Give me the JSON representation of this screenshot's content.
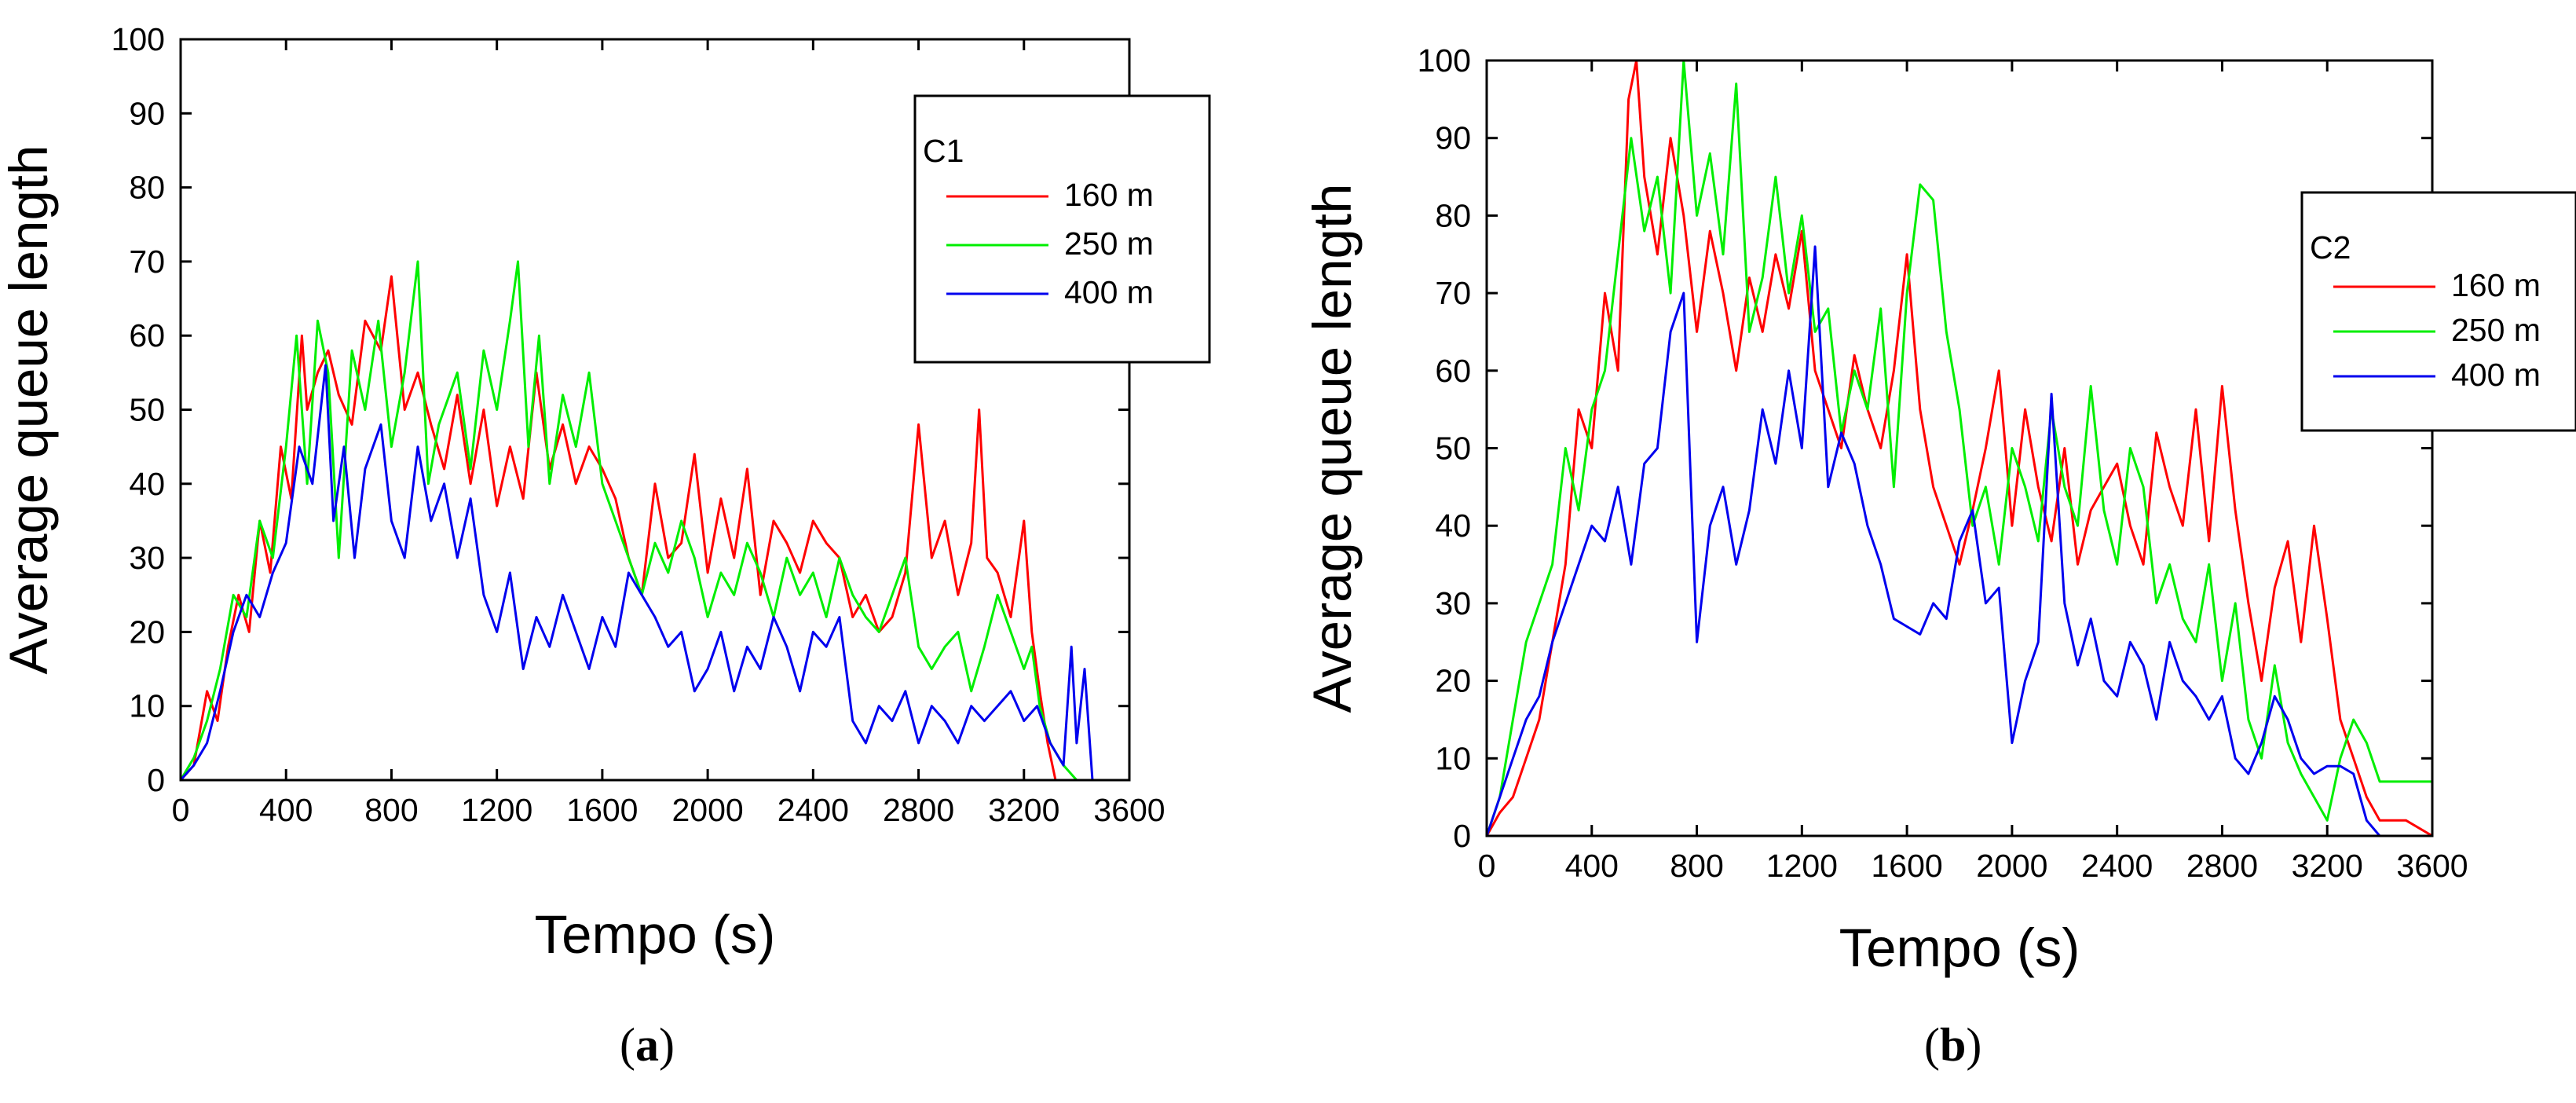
{
  "chart_data": [
    {
      "type": "line",
      "panel_label": "a",
      "xlabel": "Tempo (s)",
      "ylabel": "Average queue length",
      "xlim": [
        0,
        3600
      ],
      "ylim": [
        0,
        100
      ],
      "xticks": [
        0,
        400,
        800,
        1200,
        1600,
        2000,
        2400,
        2800,
        3200,
        3600
      ],
      "yticks": [
        0,
        10,
        20,
        30,
        40,
        50,
        60,
        70,
        80,
        90,
        100
      ],
      "legend_title": "C1",
      "legend_position": "top-right",
      "series": [
        {
          "name": "160 m",
          "color": "#ff0000",
          "x": [
            0,
            50,
            100,
            140,
            180,
            220,
            260,
            300,
            340,
            380,
            420,
            460,
            480,
            520,
            560,
            600,
            650,
            700,
            760,
            800,
            850,
            900,
            950,
            1000,
            1050,
            1100,
            1150,
            1200,
            1250,
            1300,
            1350,
            1400,
            1450,
            1500,
            1550,
            1600,
            1650,
            1700,
            1750,
            1800,
            1850,
            1900,
            1950,
            2000,
            2050,
            2100,
            2150,
            2200,
            2250,
            2300,
            2350,
            2400,
            2450,
            2500,
            2550,
            2600,
            2650,
            2700,
            2750,
            2800,
            2850,
            2900,
            2950,
            3000,
            3030,
            3060,
            3100,
            3150,
            3200,
            3230,
            3260,
            3290,
            3320
          ],
          "y": [
            0,
            2,
            12,
            8,
            18,
            25,
            20,
            35,
            28,
            45,
            38,
            60,
            50,
            55,
            58,
            52,
            48,
            62,
            58,
            68,
            50,
            55,
            48,
            42,
            52,
            40,
            50,
            37,
            45,
            38,
            55,
            42,
            48,
            40,
            45,
            42,
            38,
            30,
            25,
            40,
            30,
            32,
            44,
            28,
            38,
            30,
            42,
            25,
            35,
            32,
            28,
            35,
            32,
            30,
            22,
            25,
            20,
            22,
            28,
            48,
            30,
            35,
            25,
            32,
            50,
            30,
            28,
            22,
            35,
            20,
            12,
            5,
            0
          ]
        },
        {
          "name": "250 m",
          "color": "#00ee00",
          "x": [
            0,
            50,
            100,
            150,
            200,
            250,
            300,
            350,
            400,
            440,
            480,
            520,
            560,
            600,
            650,
            700,
            750,
            800,
            850,
            900,
            940,
            980,
            1050,
            1100,
            1150,
            1200,
            1250,
            1280,
            1320,
            1360,
            1400,
            1450,
            1500,
            1550,
            1600,
            1650,
            1700,
            1750,
            1800,
            1850,
            1900,
            1950,
            2000,
            2050,
            2100,
            2150,
            2200,
            2250,
            2300,
            2350,
            2400,
            2450,
            2500,
            2550,
            2600,
            2650,
            2700,
            2750,
            2800,
            2850,
            2900,
            2950,
            3000,
            3050,
            3100,
            3150,
            3200,
            3230,
            3260,
            3300,
            3350,
            3400
          ],
          "y": [
            0,
            3,
            8,
            15,
            25,
            22,
            35,
            30,
            45,
            60,
            40,
            62,
            55,
            30,
            58,
            50,
            62,
            45,
            55,
            70,
            40,
            48,
            55,
            42,
            58,
            50,
            62,
            70,
            45,
            60,
            40,
            52,
            45,
            55,
            40,
            35,
            30,
            25,
            32,
            28,
            35,
            30,
            22,
            28,
            25,
            32,
            28,
            22,
            30,
            25,
            28,
            22,
            30,
            25,
            22,
            20,
            25,
            30,
            18,
            15,
            18,
            20,
            12,
            18,
            25,
            20,
            15,
            18,
            10,
            5,
            2,
            0
          ]
        },
        {
          "name": "400 m",
          "color": "#0000ee",
          "x": [
            0,
            50,
            100,
            150,
            200,
            250,
            300,
            350,
            400,
            450,
            500,
            550,
            580,
            620,
            660,
            700,
            760,
            800,
            850,
            900,
            950,
            1000,
            1050,
            1100,
            1150,
            1200,
            1250,
            1300,
            1350,
            1400,
            1450,
            1500,
            1550,
            1600,
            1650,
            1700,
            1750,
            1800,
            1850,
            1900,
            1950,
            2000,
            2050,
            2100,
            2150,
            2200,
            2250,
            2300,
            2350,
            2400,
            2450,
            2500,
            2550,
            2600,
            2650,
            2700,
            2750,
            2800,
            2850,
            2900,
            2950,
            3000,
            3050,
            3100,
            3150,
            3200,
            3250,
            3300,
            3350,
            3380,
            3400,
            3430,
            3460,
            3600
          ],
          "y": [
            0,
            2,
            5,
            12,
            20,
            25,
            22,
            28,
            32,
            45,
            40,
            56,
            35,
            45,
            30,
            42,
            48,
            35,
            30,
            45,
            35,
            40,
            30,
            38,
            25,
            20,
            28,
            15,
            22,
            18,
            25,
            20,
            15,
            22,
            18,
            28,
            25,
            22,
            18,
            20,
            12,
            15,
            20,
            12,
            18,
            15,
            22,
            18,
            12,
            20,
            18,
            22,
            8,
            5,
            10,
            8,
            12,
            5,
            10,
            8,
            5,
            10,
            8,
            10,
            12,
            8,
            10,
            5,
            2,
            18,
            5,
            15,
            0,
            0
          ]
        }
      ]
    },
    {
      "type": "line",
      "panel_label": "b",
      "xlabel": "Tempo (s)",
      "ylabel": "Average queue length",
      "xlim": [
        0,
        3600
      ],
      "ylim": [
        0,
        100
      ],
      "xticks": [
        0,
        400,
        800,
        1200,
        1600,
        2000,
        2400,
        2800,
        3200,
        3600
      ],
      "yticks": [
        0,
        10,
        20,
        30,
        40,
        50,
        60,
        70,
        80,
        90,
        100
      ],
      "legend_title": "C2",
      "legend_position": "top-right",
      "series": [
        {
          "name": "160 m",
          "color": "#ff0000",
          "x": [
            0,
            50,
            100,
            150,
            200,
            250,
            300,
            350,
            400,
            450,
            500,
            540,
            570,
            600,
            650,
            700,
            750,
            800,
            850,
            900,
            950,
            1000,
            1050,
            1100,
            1150,
            1200,
            1250,
            1300,
            1350,
            1400,
            1450,
            1500,
            1550,
            1600,
            1650,
            1700,
            1750,
            1800,
            1850,
            1900,
            1950,
            2000,
            2050,
            2100,
            2150,
            2200,
            2250,
            2300,
            2350,
            2400,
            2450,
            2500,
            2550,
            2600,
            2650,
            2700,
            2750,
            2800,
            2850,
            2900,
            2950,
            3000,
            3050,
            3100,
            3150,
            3200,
            3250,
            3300,
            3350,
            3400,
            3450,
            3500,
            3600
          ],
          "y": [
            0,
            3,
            5,
            10,
            15,
            25,
            35,
            55,
            50,
            70,
            60,
            95,
            100,
            85,
            75,
            90,
            80,
            65,
            78,
            70,
            60,
            72,
            65,
            75,
            68,
            78,
            60,
            55,
            50,
            62,
            55,
            50,
            60,
            75,
            55,
            45,
            40,
            35,
            42,
            50,
            60,
            40,
            55,
            45,
            38,
            50,
            35,
            42,
            45,
            48,
            40,
            35,
            52,
            45,
            40,
            55,
            38,
            58,
            42,
            30,
            20,
            32,
            38,
            25,
            40,
            28,
            15,
            10,
            5,
            2,
            2,
            2,
            0
          ]
        },
        {
          "name": "250 m",
          "color": "#00ee00",
          "x": [
            0,
            50,
            100,
            150,
            200,
            250,
            300,
            350,
            400,
            450,
            500,
            550,
            600,
            650,
            700,
            750,
            800,
            850,
            900,
            950,
            1000,
            1050,
            1100,
            1150,
            1200,
            1250,
            1300,
            1350,
            1400,
            1450,
            1500,
            1550,
            1600,
            1650,
            1700,
            1750,
            1800,
            1850,
            1900,
            1950,
            2000,
            2050,
            2100,
            2150,
            2200,
            2250,
            2300,
            2350,
            2400,
            2450,
            2500,
            2550,
            2600,
            2650,
            2700,
            2750,
            2800,
            2850,
            2900,
            2950,
            3000,
            3050,
            3100,
            3150,
            3200,
            3250,
            3300,
            3350,
            3400,
            3600
          ],
          "y": [
            0,
            5,
            15,
            25,
            30,
            35,
            50,
            42,
            55,
            60,
            75,
            90,
            78,
            85,
            70,
            100,
            80,
            88,
            75,
            97,
            65,
            72,
            85,
            70,
            80,
            65,
            68,
            52,
            60,
            55,
            68,
            45,
            70,
            84,
            82,
            65,
            55,
            40,
            45,
            35,
            50,
            45,
            38,
            55,
            45,
            40,
            58,
            42,
            35,
            50,
            45,
            30,
            35,
            28,
            25,
            35,
            20,
            30,
            15,
            10,
            22,
            12,
            8,
            5,
            2,
            10,
            15,
            12,
            7,
            7
          ]
        },
        {
          "name": "400 m",
          "color": "#0000ee",
          "x": [
            0,
            50,
            100,
            150,
            200,
            250,
            300,
            350,
            400,
            450,
            500,
            550,
            600,
            650,
            700,
            750,
            800,
            850,
            900,
            950,
            1000,
            1050,
            1100,
            1150,
            1200,
            1250,
            1300,
            1350,
            1400,
            1450,
            1500,
            1550,
            1600,
            1650,
            1700,
            1750,
            1800,
            1850,
            1900,
            1950,
            2000,
            2050,
            2100,
            2150,
            2200,
            2250,
            2300,
            2350,
            2400,
            2450,
            2500,
            2550,
            2600,
            2650,
            2700,
            2750,
            2800,
            2850,
            2900,
            2950,
            3000,
            3050,
            3100,
            3150,
            3200,
            3250,
            3300,
            3350,
            3400,
            3600
          ],
          "y": [
            0,
            5,
            10,
            15,
            18,
            25,
            30,
            35,
            40,
            38,
            45,
            35,
            48,
            50,
            65,
            70,
            25,
            40,
            45,
            35,
            42,
            55,
            48,
            60,
            50,
            76,
            45,
            52,
            48,
            40,
            35,
            28,
            27,
            26,
            30,
            28,
            38,
            42,
            30,
            32,
            12,
            20,
            25,
            57,
            30,
            22,
            28,
            20,
            18,
            25,
            22,
            15,
            25,
            20,
            18,
            15,
            18,
            10,
            8,
            12,
            18,
            15,
            10,
            8,
            9,
            9,
            8,
            2,
            0,
            0
          ]
        }
      ]
    }
  ]
}
